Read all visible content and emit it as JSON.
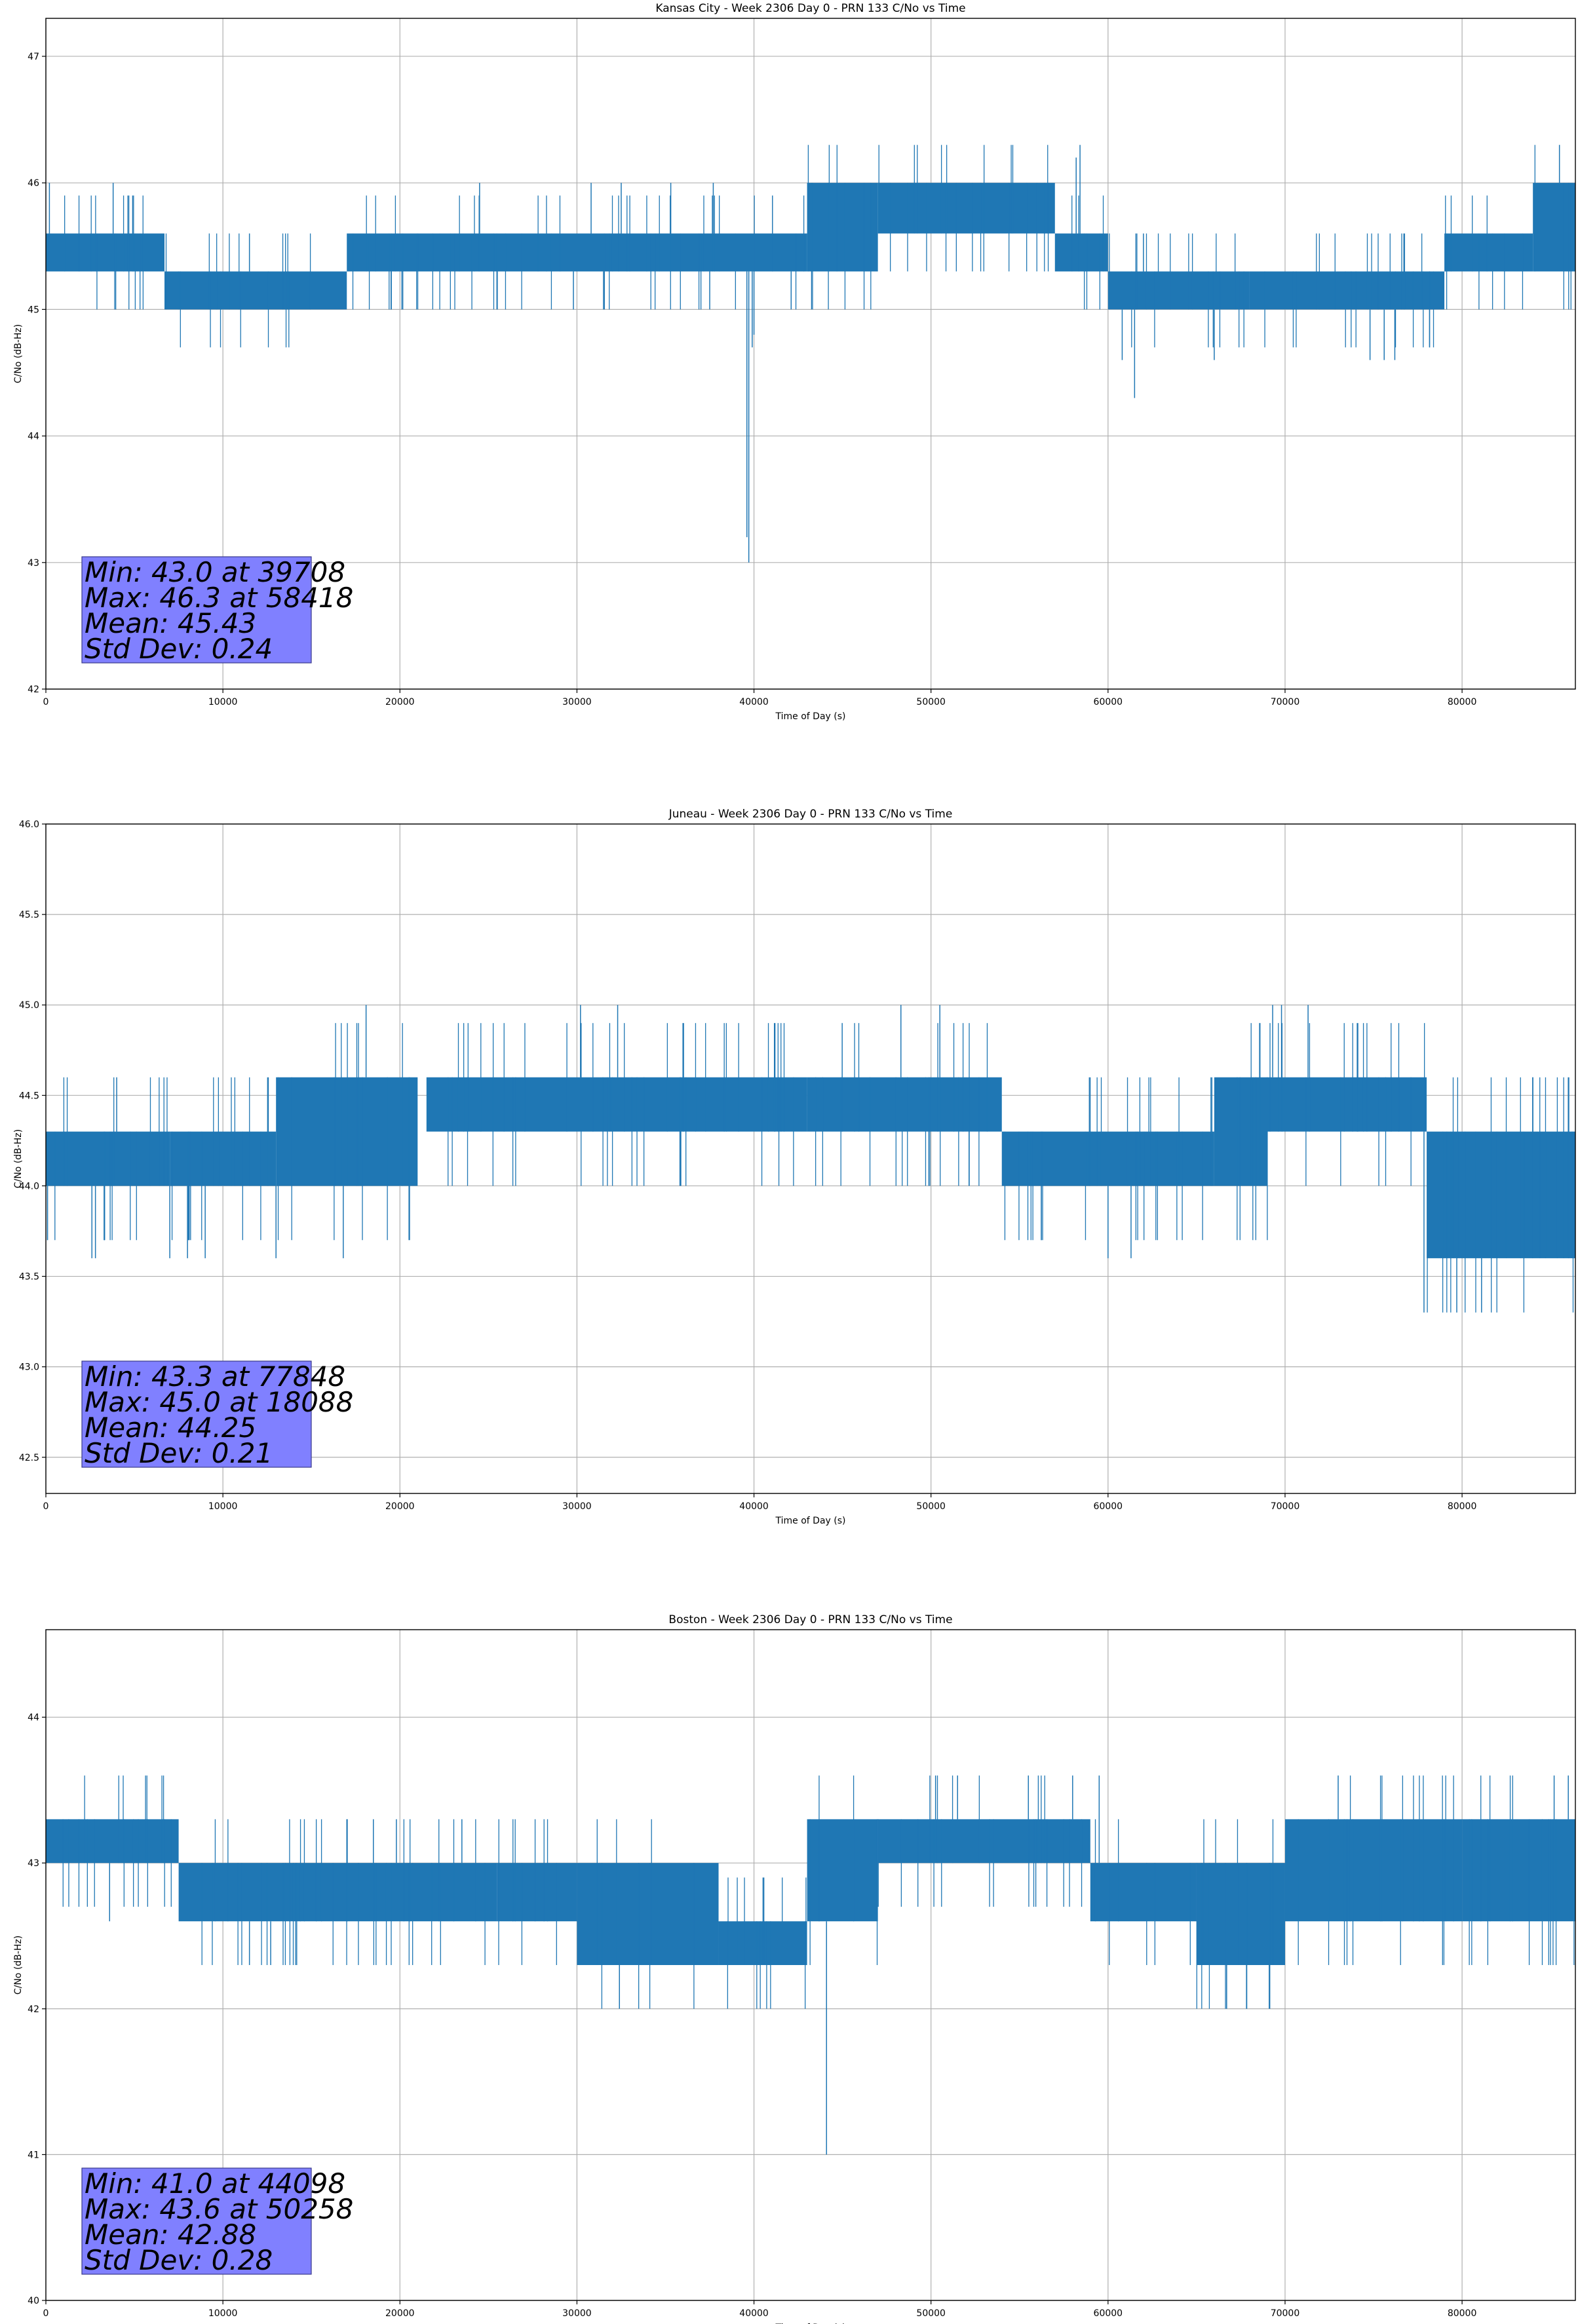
{
  "figure": {
    "background": "#ffffff",
    "line_color": "#1f77b4",
    "stats_box_color": "#8080ff",
    "grid_color": "#b0b0b0"
  },
  "chart_data": [
    {
      "type": "line",
      "title": "Kansas City - Week 2306 Day 0 - PRN 133 C/No vs Time",
      "xlabel": "Time of Day (s)",
      "ylabel": "C/No (dB-Hz)",
      "xlim": [
        0,
        86400
      ],
      "ylim": [
        42,
        47.3
      ],
      "xticks": [
        0,
        10000,
        20000,
        30000,
        40000,
        50000,
        60000,
        70000,
        80000
      ],
      "xtick_labels": [
        "0",
        "10000",
        "20000",
        "30000",
        "40000",
        "50000",
        "60000",
        "70000",
        "80000"
      ],
      "yticks": [
        42,
        43,
        44,
        45,
        46,
        47
      ],
      "ytick_labels": [
        "42",
        "43",
        "44",
        "45",
        "46",
        "47"
      ],
      "grid": true,
      "stats": [
        "Min: 43.0 at 39708",
        "Max: 46.3 at 58418",
        "Mean: 45.43",
        "Std Dev: 0.24"
      ],
      "segments": [
        {
          "x": [
            0,
            6700
          ],
          "low": 45.3,
          "high": 45.6
        },
        {
          "x": [
            6700,
            17000
          ],
          "low": 45.0,
          "high": 45.3
        },
        {
          "x": [
            17000,
            43000
          ],
          "low": 45.3,
          "high": 45.6
        },
        {
          "x": [
            43000,
            47000
          ],
          "low": 45.3,
          "high": 46.0
        },
        {
          "x": [
            47000,
            57000
          ],
          "low": 45.6,
          "high": 46.0
        },
        {
          "x": [
            57000,
            60000
          ],
          "low": 45.3,
          "high": 45.6
        },
        {
          "x": [
            60000,
            68000
          ],
          "low": 45.0,
          "high": 45.3
        },
        {
          "x": [
            68000,
            79000
          ],
          "low": 45.0,
          "high": 45.3
        },
        {
          "x": [
            79000,
            84000
          ],
          "low": 45.3,
          "high": 45.6
        },
        {
          "x": [
            84000,
            86400
          ],
          "low": 45.3,
          "high": 46.0
        }
      ],
      "spikes": [
        {
          "x": 200,
          "y": 46.0
        },
        {
          "x": 3800,
          "y": 46.0
        },
        {
          "x": 7500,
          "y": 45.0
        },
        {
          "x": 11500,
          "y": 45.6
        },
        {
          "x": 19500,
          "y": 45.0
        },
        {
          "x": 24500,
          "y": 46.0
        },
        {
          "x": 25500,
          "y": 45.0
        },
        {
          "x": 29800,
          "y": 45.0
        },
        {
          "x": 30800,
          "y": 46.0
        },
        {
          "x": 31500,
          "y": 45.0
        },
        {
          "x": 32500,
          "y": 46.0
        },
        {
          "x": 35300,
          "y": 46.0
        },
        {
          "x": 37500,
          "y": 45.0
        },
        {
          "x": 37700,
          "y": 46.0
        },
        {
          "x": 39708,
          "y": 43.0
        },
        {
          "x": 39600,
          "y": 43.2
        },
        {
          "x": 39900,
          "y": 44.7
        },
        {
          "x": 40000,
          "y": 44.8
        },
        {
          "x": 42100,
          "y": 45.0
        },
        {
          "x": 52000,
          "y": 46.0
        },
        {
          "x": 58418,
          "y": 46.3
        },
        {
          "x": 58200,
          "y": 46.2
        },
        {
          "x": 60800,
          "y": 44.6
        },
        {
          "x": 61500,
          "y": 44.3
        },
        {
          "x": 62000,
          "y": 45.6
        },
        {
          "x": 66000,
          "y": 44.6
        },
        {
          "x": 74800,
          "y": 44.6
        },
        {
          "x": 75600,
          "y": 44.6
        },
        {
          "x": 76200,
          "y": 44.6
        },
        {
          "x": 85500,
          "y": 46.3
        }
      ]
    },
    {
      "type": "line",
      "title": "Juneau - Week 2306 Day 0 - PRN 133 C/No vs Time",
      "xlabel": "Time of Day (s)",
      "ylabel": "C/No (dB-Hz)",
      "xlim": [
        0,
        86400
      ],
      "ylim": [
        42.3,
        46.0
      ],
      "xticks": [
        0,
        10000,
        20000,
        30000,
        40000,
        50000,
        60000,
        70000,
        80000
      ],
      "xtick_labels": [
        "0",
        "10000",
        "20000",
        "30000",
        "40000",
        "50000",
        "60000",
        "70000",
        "80000"
      ],
      "yticks": [
        42.5,
        43.0,
        43.5,
        44.0,
        44.5,
        45.0,
        45.5,
        46.0
      ],
      "ytick_labels": [
        "42.5",
        "43.0",
        "43.5",
        "44.0",
        "44.5",
        "45.0",
        "45.5",
        "46.0"
      ],
      "grid": true,
      "stats": [
        "Min: 43.3 at 77848",
        "Max: 45.0 at 18088",
        "Mean: 44.25",
        "Std Dev: 0.21"
      ],
      "segments": [
        {
          "x": [
            0,
            7000
          ],
          "low": 44.0,
          "high": 44.3
        },
        {
          "x": [
            7000,
            13000
          ],
          "low": 44.0,
          "high": 44.3
        },
        {
          "x": [
            13000,
            21000
          ],
          "low": 44.0,
          "high": 44.6
        },
        {
          "x": [
            21500,
            43000
          ],
          "low": 44.3,
          "high": 44.6
        },
        {
          "x": [
            43000,
            54000
          ],
          "low": 44.3,
          "high": 44.6
        },
        {
          "x": [
            54000,
            66000
          ],
          "low": 44.0,
          "high": 44.3
        },
        {
          "x": [
            66000,
            69000
          ],
          "low": 44.0,
          "high": 44.6
        },
        {
          "x": [
            69000,
            78000
          ],
          "low": 44.3,
          "high": 44.6
        },
        {
          "x": [
            78000,
            86400
          ],
          "low": 43.6,
          "high": 44.3
        }
      ],
      "spikes": [
        {
          "x": 2600,
          "y": 43.6
        },
        {
          "x": 2800,
          "y": 43.6
        },
        {
          "x": 4000,
          "y": 44.6
        },
        {
          "x": 7000,
          "y": 43.6
        },
        {
          "x": 8000,
          "y": 43.6
        },
        {
          "x": 9000,
          "y": 43.6
        },
        {
          "x": 13000,
          "y": 43.6
        },
        {
          "x": 16800,
          "y": 43.6
        },
        {
          "x": 18088,
          "y": 45.0
        },
        {
          "x": 30200,
          "y": 45.0
        },
        {
          "x": 32300,
          "y": 45.0
        },
        {
          "x": 48300,
          "y": 45.0
        },
        {
          "x": 50500,
          "y": 45.0
        },
        {
          "x": 60000,
          "y": 43.6
        },
        {
          "x": 61300,
          "y": 43.6
        },
        {
          "x": 69300,
          "y": 45.0
        },
        {
          "x": 69800,
          "y": 45.0
        },
        {
          "x": 71300,
          "y": 45.0
        },
        {
          "x": 77848,
          "y": 43.3
        },
        {
          "x": 79700,
          "y": 43.3
        },
        {
          "x": 81100,
          "y": 43.3
        },
        {
          "x": 84000,
          "y": 44.6
        },
        {
          "x": 86200,
          "y": 43.6
        }
      ]
    },
    {
      "type": "line",
      "title": "Boston - Week 2306 Day 0 - PRN 133 C/No vs Time",
      "xlabel": "Time of Day (s)",
      "ylabel": "C/No (dB-Hz)",
      "xlim": [
        0,
        86400
      ],
      "ylim": [
        40,
        44.6
      ],
      "xticks": [
        0,
        10000,
        20000,
        30000,
        40000,
        50000,
        60000,
        70000,
        80000
      ],
      "xtick_labels": [
        "0",
        "10000",
        "20000",
        "30000",
        "40000",
        "50000",
        "60000",
        "70000",
        "80000"
      ],
      "yticks": [
        40,
        41,
        42,
        43,
        44
      ],
      "ytick_labels": [
        "40",
        "41",
        "42",
        "43",
        "44"
      ],
      "grid": true,
      "stats": [
        "Min: 41.0 at 44098",
        "Max: 43.6 at 50258",
        "Mean: 42.88",
        "Std Dev: 0.28"
      ],
      "segments": [
        {
          "x": [
            0,
            7500
          ],
          "low": 43.0,
          "high": 43.3
        },
        {
          "x": [
            7500,
            25500
          ],
          "low": 42.6,
          "high": 43.0
        },
        {
          "x": [
            25500,
            30000
          ],
          "low": 42.6,
          "high": 43.0
        },
        {
          "x": [
            30000,
            38000
          ],
          "low": 42.3,
          "high": 43.0
        },
        {
          "x": [
            38000,
            43000
          ],
          "low": 42.3,
          "high": 42.6
        },
        {
          "x": [
            43000,
            47000
          ],
          "low": 42.6,
          "high": 43.3
        },
        {
          "x": [
            47000,
            59000
          ],
          "low": 43.0,
          "high": 43.3
        },
        {
          "x": [
            59000,
            65000
          ],
          "low": 42.6,
          "high": 43.0
        },
        {
          "x": [
            65000,
            70000
          ],
          "low": 42.3,
          "high": 43.0
        },
        {
          "x": [
            70000,
            80000
          ],
          "low": 42.6,
          "high": 43.3
        },
        {
          "x": [
            80000,
            86400
          ],
          "low": 42.6,
          "high": 43.3
        }
      ],
      "spikes": [
        {
          "x": 3600,
          "y": 42.6
        },
        {
          "x": 11500,
          "y": 42.3
        },
        {
          "x": 12700,
          "y": 42.3
        },
        {
          "x": 17000,
          "y": 43.3
        },
        {
          "x": 18500,
          "y": 43.3
        },
        {
          "x": 19800,
          "y": 43.3
        },
        {
          "x": 23500,
          "y": 43.3
        },
        {
          "x": 32400,
          "y": 42.0
        },
        {
          "x": 44098,
          "y": 41.0
        },
        {
          "x": 50258,
          "y": 43.6
        },
        {
          "x": 51500,
          "y": 43.6
        },
        {
          "x": 55500,
          "y": 43.6
        },
        {
          "x": 58000,
          "y": 43.6
        },
        {
          "x": 59500,
          "y": 43.6
        },
        {
          "x": 66700,
          "y": 42.0
        },
        {
          "x": 73000,
          "y": 43.6
        },
        {
          "x": 85200,
          "y": 43.6
        },
        {
          "x": 86000,
          "y": 43.6
        }
      ]
    }
  ]
}
